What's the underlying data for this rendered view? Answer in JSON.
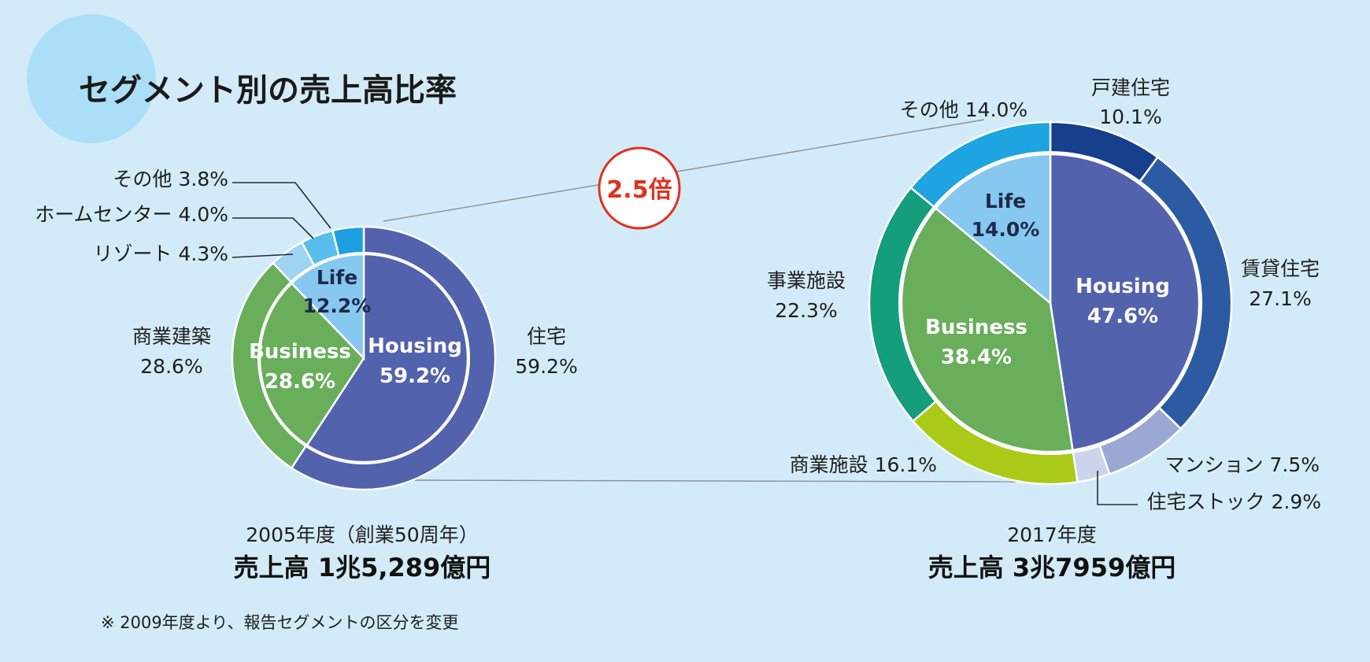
{
  "title": "セグメント別の売上高比率",
  "badge": "2.5倍",
  "note": "※ 2009年度より、報告セグメントの区分を変更",
  "colors": {
    "background": "#d3ebf8",
    "badge_border": "#e0321e"
  },
  "chart_data": [
    {
      "type": "pie",
      "year_label": "2005年度（創業50周年）",
      "sales_label": "売上高 1兆5,289億円",
      "inner": [
        {
          "name": "Housing",
          "value": 59.2,
          "label": "59.2%",
          "color": "#5262ad"
        },
        {
          "name": "Business",
          "value": 28.6,
          "label": "28.6%",
          "color": "#69ae5b"
        },
        {
          "name": "Life",
          "value": 12.2,
          "label": "12.2%",
          "color": "#86c8ef"
        }
      ],
      "outer": [
        {
          "name": "住宅",
          "value": 59.2,
          "label": "59.2%",
          "color": "#5262ad"
        },
        {
          "name": "商業建築",
          "value": 28.6,
          "label": "28.6%",
          "color": "#69ae5b"
        },
        {
          "name": "リゾート",
          "value": 4.3,
          "label": "4.3%",
          "color": "#9ed4f2"
        },
        {
          "name": "ホームセンター",
          "value": 4.0,
          "label": "4.0%",
          "color": "#59bdee"
        },
        {
          "name": "その他",
          "value": 3.8,
          "label": "3.8%",
          "color": "#1e9fe0"
        }
      ]
    },
    {
      "type": "pie",
      "year_label": "2017年度",
      "sales_label": "売上高 3兆7959億円",
      "inner": [
        {
          "name": "Housing",
          "value": 47.6,
          "label": "47.6%",
          "color": "#5262ad"
        },
        {
          "name": "Business",
          "value": 38.4,
          "label": "38.4%",
          "color": "#69ae5b"
        },
        {
          "name": "Life",
          "value": 14.0,
          "label": "14.0%",
          "color": "#86c8ef"
        }
      ],
      "outer": [
        {
          "name": "戸建住宅",
          "value": 10.1,
          "label": "10.1%",
          "color": "#163f8c"
        },
        {
          "name": "賃貸住宅",
          "value": 27.1,
          "label": "27.1%",
          "color": "#2c5ba3"
        },
        {
          "name": "マンション",
          "value": 7.5,
          "label": "7.5%",
          "color": "#9aa8d3"
        },
        {
          "name": "住宅ストック",
          "value": 2.9,
          "label": "2.9%",
          "color": "#cdd3ea"
        },
        {
          "name": "商業施設",
          "value": 16.1,
          "label": "16.1%",
          "color": "#a9ca17"
        },
        {
          "name": "事業施設",
          "value": 22.3,
          "label": "22.3%",
          "color": "#149e7b"
        },
        {
          "name": "その他",
          "value": 14.0,
          "label": "14.0%",
          "color": "#1ea4e0"
        }
      ]
    }
  ]
}
